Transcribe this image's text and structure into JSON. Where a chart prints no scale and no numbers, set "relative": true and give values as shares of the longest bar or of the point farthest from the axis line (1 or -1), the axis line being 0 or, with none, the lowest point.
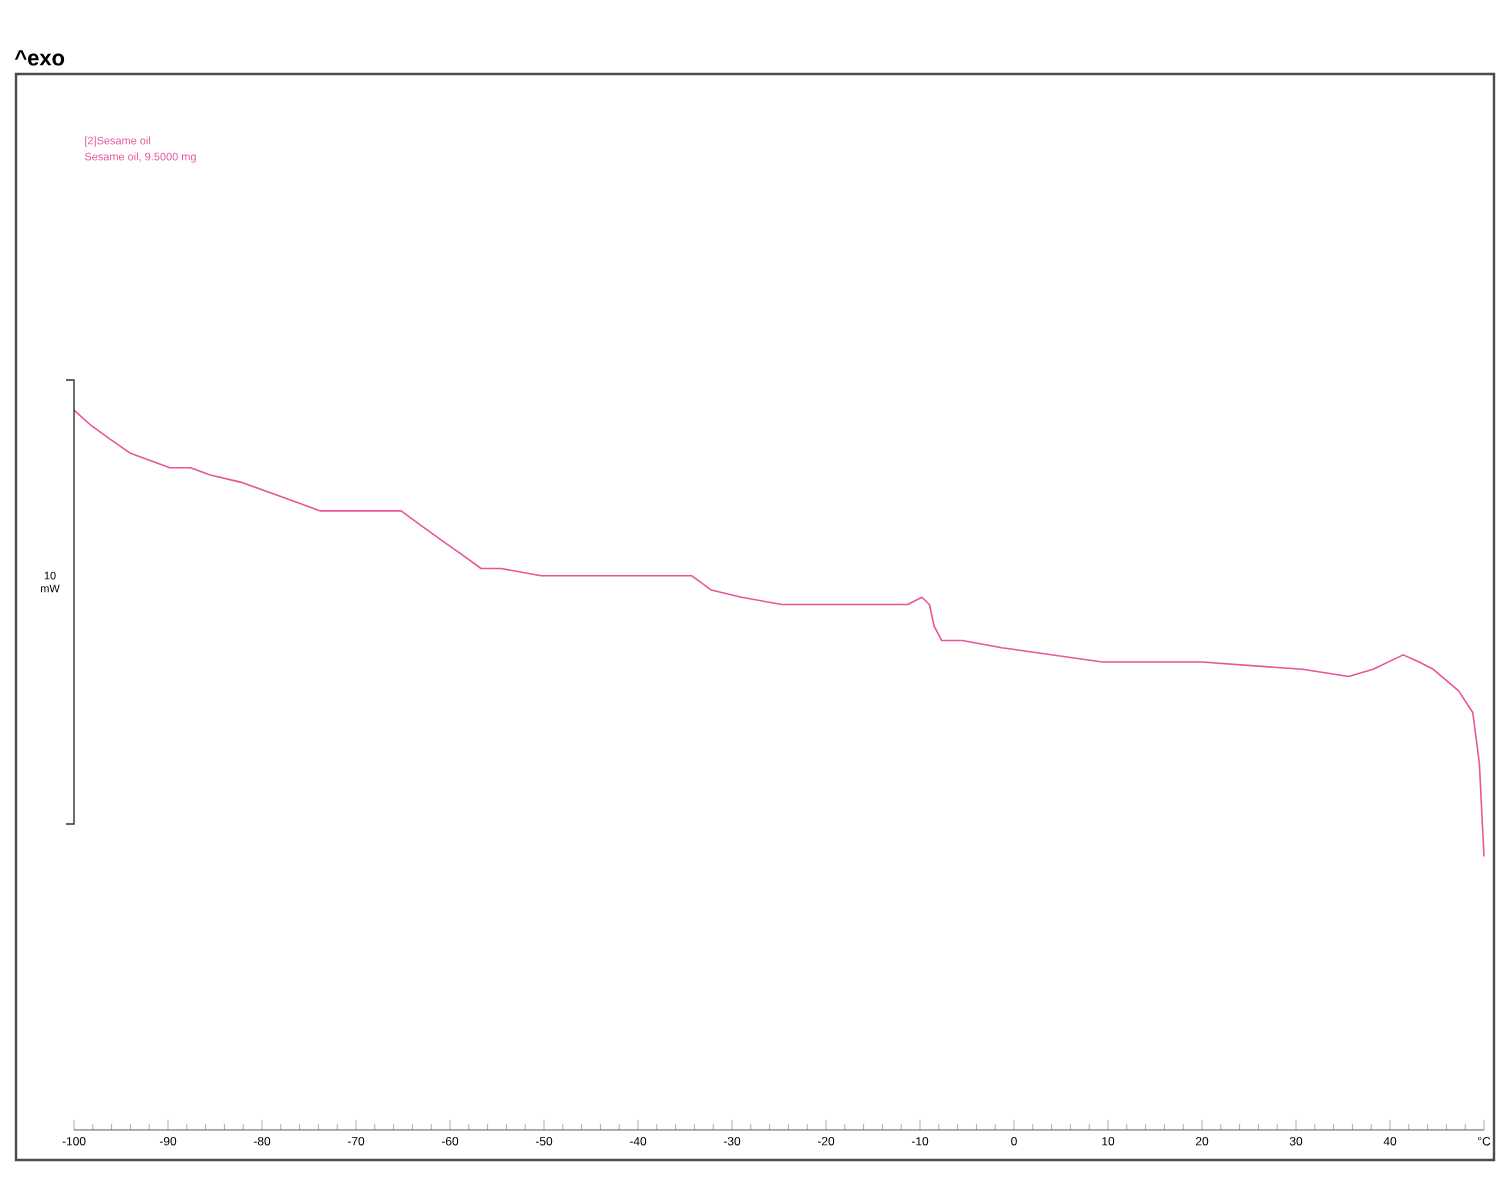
{
  "chart_data": {
    "type": "line",
    "relative": true,
    "xlim": [
      -100,
      50
    ],
    "xticks": [
      -100,
      -90,
      -80,
      -70,
      -60,
      -50,
      -40,
      -30,
      -20,
      -10,
      0,
      10,
      20,
      30,
      40,
      {
        "value": 50,
        "label": "°C"
      }
    ],
    "annotations": [
      "^exo",
      "Sesame oil, 9.5000 mg",
      "10 mW"
    ],
    "series": [
      {
        "name": "[2]Sesame oil",
        "color": "#e8559a",
        "x": [
          -100,
          -98.3,
          -96.2,
          -94.0,
          -91.9,
          -89.8,
          -87.6,
          -85.5,
          -82.3,
          -78.0,
          -73.8,
          -70.6,
          -67.4,
          -65.2,
          -63.1,
          -61.0,
          -58.8,
          -56.7,
          -54.6,
          -50.3,
          -43.9,
          -37.5,
          -34.3,
          -32.2,
          -29.0,
          -24.7,
          -18.3,
          -11.3,
          -9.8,
          -9.0,
          -8.5,
          -7.7,
          -5.5,
          -1.3,
          9.4,
          20.0,
          30.7,
          35.6,
          38.2,
          41.4,
          43.1,
          44.6,
          47.3,
          48.8,
          49.5,
          50
        ],
        "values": [
          1,
          0.98,
          0.96,
          0.94,
          0.93,
          0.92,
          0.92,
          0.91,
          0.9,
          0.88,
          0.86,
          0.86,
          0.86,
          0.86,
          0.84,
          0.82,
          0.8,
          0.78,
          0.78,
          0.77,
          0.77,
          0.77,
          0.77,
          0.75,
          0.74,
          0.73,
          0.73,
          0.73,
          0.74,
          0.73,
          0.7,
          0.68,
          0.68,
          0.67,
          0.65,
          0.65,
          0.64,
          0.63,
          0.64,
          0.66,
          0.65,
          0.64,
          0.61,
          0.58,
          0.51,
          0.38
        ]
      }
    ]
  }
}
